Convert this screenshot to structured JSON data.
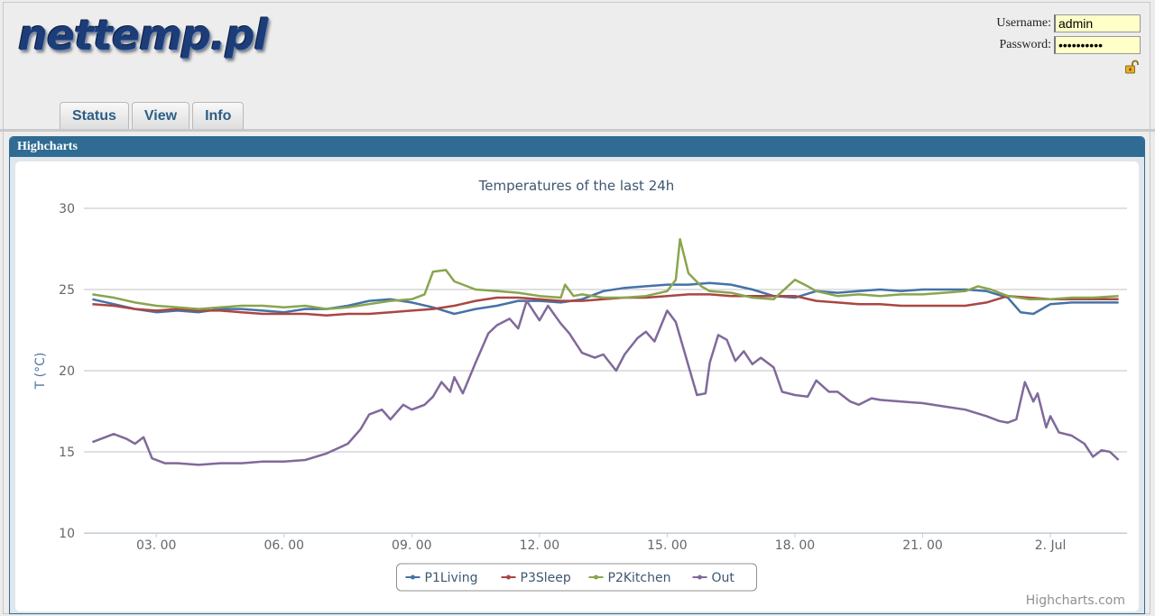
{
  "header": {
    "logo_text": "nettemp.pl",
    "login": {
      "username_label": "Username:",
      "username_value": "admin",
      "password_label": "Password:",
      "password_value": "••••••••••"
    }
  },
  "tabs": [
    {
      "label": "Status"
    },
    {
      "label": "View"
    },
    {
      "label": "Info"
    }
  ],
  "panel": {
    "title": "Highcharts"
  },
  "colors": {
    "panel_header": "#2f6b92",
    "tab_text": "#2b5e86",
    "input_bg": "#ffffc8"
  },
  "chart_data": {
    "type": "line",
    "title": "Temperatures of the last 24h",
    "ylabel": "T (°C)",
    "xlabel": "",
    "ylim": [
      10,
      30
    ],
    "yticks": [
      10,
      15,
      20,
      25,
      30
    ],
    "xlim": [
      1.3,
      25.8
    ],
    "xticks": [
      {
        "x": 3,
        "label": "03. 00"
      },
      {
        "x": 6,
        "label": "06. 00"
      },
      {
        "x": 9,
        "label": "09. 00"
      },
      {
        "x": 12,
        "label": "12. 00"
      },
      {
        "x": 15,
        "label": "15. 00"
      },
      {
        "x": 18,
        "label": "18. 00"
      },
      {
        "x": 21,
        "label": "21. 00"
      },
      {
        "x": 24,
        "label": "2. Jul"
      }
    ],
    "grid": true,
    "legend_position": "bottom-center",
    "credits": "Highcharts.com",
    "series": [
      {
        "name": "P1Living",
        "color": "#4572A7",
        "points": [
          [
            1.5,
            24.4
          ],
          [
            2.0,
            24.1
          ],
          [
            2.5,
            23.8
          ],
          [
            3.0,
            23.6
          ],
          [
            3.5,
            23.7
          ],
          [
            4.0,
            23.6
          ],
          [
            4.5,
            23.8
          ],
          [
            5.0,
            23.8
          ],
          [
            5.5,
            23.7
          ],
          [
            6.0,
            23.6
          ],
          [
            6.5,
            23.8
          ],
          [
            7.0,
            23.8
          ],
          [
            7.5,
            24.0
          ],
          [
            8.0,
            24.3
          ],
          [
            8.5,
            24.4
          ],
          [
            9.0,
            24.2
          ],
          [
            9.5,
            23.9
          ],
          [
            10.0,
            23.5
          ],
          [
            10.5,
            23.8
          ],
          [
            11.0,
            24.0
          ],
          [
            11.5,
            24.3
          ],
          [
            12.0,
            24.3
          ],
          [
            12.5,
            24.2
          ],
          [
            13.0,
            24.4
          ],
          [
            13.5,
            24.9
          ],
          [
            14.0,
            25.1
          ],
          [
            14.5,
            25.2
          ],
          [
            15.0,
            25.3
          ],
          [
            15.5,
            25.3
          ],
          [
            16.0,
            25.4
          ],
          [
            16.5,
            25.3
          ],
          [
            17.0,
            25.0
          ],
          [
            17.5,
            24.6
          ],
          [
            18.0,
            24.5
          ],
          [
            18.5,
            24.9
          ],
          [
            19.0,
            24.8
          ],
          [
            19.5,
            24.9
          ],
          [
            20.0,
            25.0
          ],
          [
            20.5,
            24.9
          ],
          [
            21.0,
            25.0
          ],
          [
            21.5,
            25.0
          ],
          [
            22.0,
            25.0
          ],
          [
            22.5,
            24.9
          ],
          [
            23.0,
            24.5
          ],
          [
            23.3,
            23.6
          ],
          [
            23.6,
            23.5
          ],
          [
            24.0,
            24.1
          ],
          [
            24.5,
            24.2
          ],
          [
            25.0,
            24.2
          ],
          [
            25.6,
            24.2
          ]
        ]
      },
      {
        "name": "P3Sleep",
        "color": "#AA4643",
        "points": [
          [
            1.5,
            24.1
          ],
          [
            2.0,
            24.0
          ],
          [
            2.5,
            23.8
          ],
          [
            3.0,
            23.7
          ],
          [
            3.5,
            23.8
          ],
          [
            4.0,
            23.7
          ],
          [
            4.5,
            23.7
          ],
          [
            5.0,
            23.6
          ],
          [
            5.5,
            23.5
          ],
          [
            6.0,
            23.5
          ],
          [
            6.5,
            23.5
          ],
          [
            7.0,
            23.4
          ],
          [
            7.5,
            23.5
          ],
          [
            8.0,
            23.5
          ],
          [
            8.5,
            23.6
          ],
          [
            9.0,
            23.7
          ],
          [
            9.5,
            23.8
          ],
          [
            10.0,
            24.0
          ],
          [
            10.5,
            24.3
          ],
          [
            11.0,
            24.5
          ],
          [
            11.5,
            24.5
          ],
          [
            12.0,
            24.4
          ],
          [
            12.5,
            24.3
          ],
          [
            13.0,
            24.3
          ],
          [
            13.5,
            24.4
          ],
          [
            14.0,
            24.5
          ],
          [
            14.5,
            24.5
          ],
          [
            15.0,
            24.6
          ],
          [
            15.5,
            24.7
          ],
          [
            16.0,
            24.7
          ],
          [
            16.5,
            24.6
          ],
          [
            17.0,
            24.6
          ],
          [
            17.5,
            24.6
          ],
          [
            18.0,
            24.6
          ],
          [
            18.5,
            24.3
          ],
          [
            19.0,
            24.2
          ],
          [
            19.5,
            24.1
          ],
          [
            20.0,
            24.1
          ],
          [
            20.5,
            24.0
          ],
          [
            21.0,
            24.0
          ],
          [
            21.5,
            24.0
          ],
          [
            22.0,
            24.0
          ],
          [
            22.5,
            24.2
          ],
          [
            23.0,
            24.6
          ],
          [
            23.5,
            24.5
          ],
          [
            24.0,
            24.4
          ],
          [
            24.5,
            24.4
          ],
          [
            25.0,
            24.4
          ],
          [
            25.6,
            24.4
          ]
        ]
      },
      {
        "name": "P2Kitchen",
        "color": "#89A54E",
        "points": [
          [
            1.5,
            24.7
          ],
          [
            2.0,
            24.5
          ],
          [
            2.5,
            24.2
          ],
          [
            3.0,
            24.0
          ],
          [
            3.5,
            23.9
          ],
          [
            4.0,
            23.8
          ],
          [
            4.5,
            23.9
          ],
          [
            5.0,
            24.0
          ],
          [
            5.5,
            24.0
          ],
          [
            6.0,
            23.9
          ],
          [
            6.5,
            24.0
          ],
          [
            7.0,
            23.8
          ],
          [
            7.5,
            23.9
          ],
          [
            8.0,
            24.1
          ],
          [
            8.5,
            24.3
          ],
          [
            9.0,
            24.4
          ],
          [
            9.3,
            24.7
          ],
          [
            9.5,
            26.1
          ],
          [
            9.8,
            26.2
          ],
          [
            10.0,
            25.5
          ],
          [
            10.5,
            25.0
          ],
          [
            11.0,
            24.9
          ],
          [
            11.5,
            24.8
          ],
          [
            12.0,
            24.6
          ],
          [
            12.5,
            24.5
          ],
          [
            12.6,
            25.3
          ],
          [
            12.8,
            24.6
          ],
          [
            13.0,
            24.7
          ],
          [
            13.5,
            24.5
          ],
          [
            14.0,
            24.5
          ],
          [
            14.5,
            24.6
          ],
          [
            15.0,
            24.9
          ],
          [
            15.2,
            25.6
          ],
          [
            15.3,
            28.1
          ],
          [
            15.5,
            26.0
          ],
          [
            15.8,
            25.2
          ],
          [
            16.0,
            24.9
          ],
          [
            16.5,
            24.8
          ],
          [
            17.0,
            24.5
          ],
          [
            17.5,
            24.4
          ],
          [
            18.0,
            25.6
          ],
          [
            18.3,
            25.2
          ],
          [
            18.5,
            24.9
          ],
          [
            19.0,
            24.6
          ],
          [
            19.5,
            24.7
          ],
          [
            20.0,
            24.6
          ],
          [
            20.5,
            24.7
          ],
          [
            21.0,
            24.7
          ],
          [
            21.5,
            24.8
          ],
          [
            22.0,
            24.9
          ],
          [
            22.3,
            25.2
          ],
          [
            22.6,
            25.0
          ],
          [
            23.0,
            24.6
          ],
          [
            23.5,
            24.4
          ],
          [
            24.0,
            24.4
          ],
          [
            24.5,
            24.5
          ],
          [
            25.0,
            24.5
          ],
          [
            25.6,
            24.6
          ]
        ]
      },
      {
        "name": "Out",
        "color": "#80699B",
        "points": [
          [
            1.5,
            15.6
          ],
          [
            1.8,
            15.9
          ],
          [
            2.0,
            16.1
          ],
          [
            2.3,
            15.8
          ],
          [
            2.5,
            15.5
          ],
          [
            2.7,
            15.9
          ],
          [
            2.9,
            14.6
          ],
          [
            3.2,
            14.3
          ],
          [
            3.5,
            14.3
          ],
          [
            4.0,
            14.2
          ],
          [
            4.5,
            14.3
          ],
          [
            5.0,
            14.3
          ],
          [
            5.5,
            14.4
          ],
          [
            6.0,
            14.4
          ],
          [
            6.5,
            14.5
          ],
          [
            7.0,
            14.9
          ],
          [
            7.5,
            15.5
          ],
          [
            7.8,
            16.4
          ],
          [
            8.0,
            17.3
          ],
          [
            8.3,
            17.6
          ],
          [
            8.5,
            17.0
          ],
          [
            8.8,
            17.9
          ],
          [
            9.0,
            17.6
          ],
          [
            9.3,
            17.9
          ],
          [
            9.5,
            18.4
          ],
          [
            9.7,
            19.3
          ],
          [
            9.9,
            18.7
          ],
          [
            10.0,
            19.6
          ],
          [
            10.2,
            18.6
          ],
          [
            10.5,
            20.5
          ],
          [
            10.8,
            22.3
          ],
          [
            11.0,
            22.8
          ],
          [
            11.3,
            23.2
          ],
          [
            11.5,
            22.6
          ],
          [
            11.7,
            24.3
          ],
          [
            12.0,
            23.1
          ],
          [
            12.2,
            24.0
          ],
          [
            12.5,
            22.9
          ],
          [
            12.7,
            22.3
          ],
          [
            13.0,
            21.1
          ],
          [
            13.3,
            20.8
          ],
          [
            13.5,
            21.0
          ],
          [
            13.8,
            20.0
          ],
          [
            14.0,
            21.0
          ],
          [
            14.3,
            22.0
          ],
          [
            14.5,
            22.4
          ],
          [
            14.7,
            21.8
          ],
          [
            15.0,
            23.7
          ],
          [
            15.2,
            23.0
          ],
          [
            15.5,
            20.3
          ],
          [
            15.7,
            18.5
          ],
          [
            15.9,
            18.6
          ],
          [
            16.0,
            20.5
          ],
          [
            16.2,
            22.2
          ],
          [
            16.4,
            21.9
          ],
          [
            16.6,
            20.6
          ],
          [
            16.8,
            21.2
          ],
          [
            17.0,
            20.4
          ],
          [
            17.2,
            20.8
          ],
          [
            17.5,
            20.2
          ],
          [
            17.7,
            18.7
          ],
          [
            18.0,
            18.5
          ],
          [
            18.3,
            18.4
          ],
          [
            18.5,
            19.4
          ],
          [
            18.8,
            18.7
          ],
          [
            19.0,
            18.7
          ],
          [
            19.3,
            18.1
          ],
          [
            19.5,
            17.9
          ],
          [
            19.8,
            18.3
          ],
          [
            20.0,
            18.2
          ],
          [
            20.5,
            18.1
          ],
          [
            21.0,
            18.0
          ],
          [
            21.5,
            17.8
          ],
          [
            22.0,
            17.6
          ],
          [
            22.5,
            17.2
          ],
          [
            22.8,
            16.9
          ],
          [
            23.0,
            16.8
          ],
          [
            23.2,
            17.0
          ],
          [
            23.4,
            19.3
          ],
          [
            23.6,
            18.1
          ],
          [
            23.7,
            18.6
          ],
          [
            23.9,
            16.5
          ],
          [
            24.0,
            17.2
          ],
          [
            24.2,
            16.2
          ],
          [
            24.5,
            16.0
          ],
          [
            24.8,
            15.5
          ],
          [
            25.0,
            14.7
          ],
          [
            25.2,
            15.1
          ],
          [
            25.4,
            15.0
          ],
          [
            25.6,
            14.5
          ]
        ]
      }
    ]
  }
}
